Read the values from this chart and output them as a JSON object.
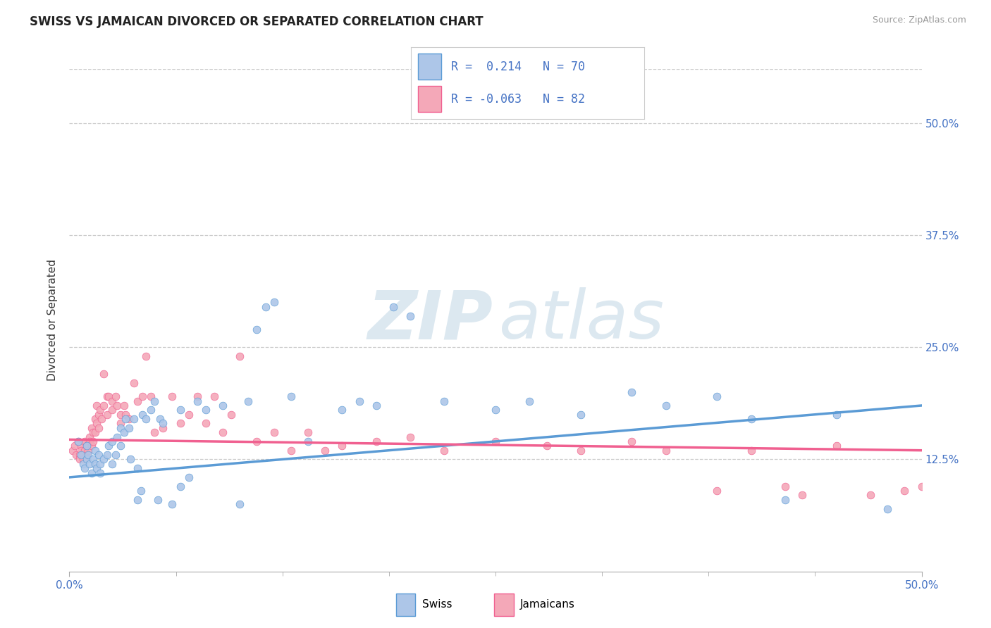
{
  "title": "SWISS VS JAMAICAN DIVORCED OR SEPARATED CORRELATION CHART",
  "source_text": "Source: ZipAtlas.com",
  "ylabel": "Divorced or Separated",
  "xlim": [
    0.0,
    0.5
  ],
  "ylim": [
    0.0,
    0.56
  ],
  "ytick_vals": [
    0.125,
    0.25,
    0.375,
    0.5
  ],
  "ytick_labels": [
    "12.5%",
    "25.0%",
    "37.5%",
    "50.0%"
  ],
  "gridline_color": "#cccccc",
  "swiss_color": "#adc6e8",
  "jamaican_color": "#f4a8b8",
  "swiss_edge_color": "#5b9bd5",
  "jamaican_edge_color": "#f06090",
  "swiss_line_color": "#5b9bd5",
  "jamaican_line_color": "#f06090",
  "watermark_color": "#dce8f0",
  "legend_R_swiss": "0.214",
  "legend_N_swiss": "70",
  "legend_R_jamaican": "-0.063",
  "legend_N_jamaican": "82",
  "swiss_points": [
    [
      0.005,
      0.145
    ],
    [
      0.007,
      0.13
    ],
    [
      0.008,
      0.12
    ],
    [
      0.009,
      0.115
    ],
    [
      0.01,
      0.14
    ],
    [
      0.01,
      0.125
    ],
    [
      0.011,
      0.13
    ],
    [
      0.012,
      0.12
    ],
    [
      0.013,
      0.11
    ],
    [
      0.014,
      0.125
    ],
    [
      0.015,
      0.135
    ],
    [
      0.015,
      0.12
    ],
    [
      0.016,
      0.115
    ],
    [
      0.017,
      0.13
    ],
    [
      0.018,
      0.12
    ],
    [
      0.018,
      0.11
    ],
    [
      0.02,
      0.125
    ],
    [
      0.022,
      0.13
    ],
    [
      0.023,
      0.14
    ],
    [
      0.025,
      0.145
    ],
    [
      0.025,
      0.12
    ],
    [
      0.027,
      0.13
    ],
    [
      0.028,
      0.15
    ],
    [
      0.03,
      0.16
    ],
    [
      0.03,
      0.14
    ],
    [
      0.032,
      0.155
    ],
    [
      0.033,
      0.17
    ],
    [
      0.035,
      0.16
    ],
    [
      0.036,
      0.125
    ],
    [
      0.038,
      0.17
    ],
    [
      0.04,
      0.115
    ],
    [
      0.04,
      0.08
    ],
    [
      0.042,
      0.09
    ],
    [
      0.043,
      0.175
    ],
    [
      0.045,
      0.17
    ],
    [
      0.048,
      0.18
    ],
    [
      0.05,
      0.19
    ],
    [
      0.052,
      0.08
    ],
    [
      0.053,
      0.17
    ],
    [
      0.055,
      0.165
    ],
    [
      0.06,
      0.075
    ],
    [
      0.065,
      0.18
    ],
    [
      0.065,
      0.095
    ],
    [
      0.07,
      0.105
    ],
    [
      0.075,
      0.19
    ],
    [
      0.08,
      0.18
    ],
    [
      0.09,
      0.185
    ],
    [
      0.1,
      0.075
    ],
    [
      0.105,
      0.19
    ],
    [
      0.11,
      0.27
    ],
    [
      0.115,
      0.295
    ],
    [
      0.12,
      0.3
    ],
    [
      0.13,
      0.195
    ],
    [
      0.14,
      0.145
    ],
    [
      0.16,
      0.18
    ],
    [
      0.17,
      0.19
    ],
    [
      0.18,
      0.185
    ],
    [
      0.19,
      0.295
    ],
    [
      0.2,
      0.285
    ],
    [
      0.22,
      0.19
    ],
    [
      0.25,
      0.18
    ],
    [
      0.27,
      0.19
    ],
    [
      0.3,
      0.175
    ],
    [
      0.33,
      0.2
    ],
    [
      0.35,
      0.185
    ],
    [
      0.38,
      0.195
    ],
    [
      0.4,
      0.17
    ],
    [
      0.42,
      0.08
    ],
    [
      0.45,
      0.175
    ],
    [
      0.48,
      0.07
    ]
  ],
  "jamaican_points": [
    [
      0.002,
      0.135
    ],
    [
      0.003,
      0.14
    ],
    [
      0.004,
      0.13
    ],
    [
      0.005,
      0.145
    ],
    [
      0.006,
      0.13
    ],
    [
      0.006,
      0.125
    ],
    [
      0.007,
      0.14
    ],
    [
      0.007,
      0.135
    ],
    [
      0.008,
      0.13
    ],
    [
      0.008,
      0.125
    ],
    [
      0.009,
      0.145
    ],
    [
      0.009,
      0.135
    ],
    [
      0.01,
      0.14
    ],
    [
      0.01,
      0.13
    ],
    [
      0.011,
      0.14
    ],
    [
      0.011,
      0.135
    ],
    [
      0.012,
      0.15
    ],
    [
      0.012,
      0.145
    ],
    [
      0.013,
      0.14
    ],
    [
      0.013,
      0.16
    ],
    [
      0.014,
      0.155
    ],
    [
      0.014,
      0.145
    ],
    [
      0.015,
      0.17
    ],
    [
      0.015,
      0.155
    ],
    [
      0.016,
      0.165
    ],
    [
      0.016,
      0.185
    ],
    [
      0.017,
      0.175
    ],
    [
      0.017,
      0.16
    ],
    [
      0.018,
      0.18
    ],
    [
      0.019,
      0.17
    ],
    [
      0.02,
      0.22
    ],
    [
      0.02,
      0.185
    ],
    [
      0.022,
      0.195
    ],
    [
      0.022,
      0.175
    ],
    [
      0.023,
      0.195
    ],
    [
      0.025,
      0.18
    ],
    [
      0.025,
      0.19
    ],
    [
      0.027,
      0.195
    ],
    [
      0.028,
      0.185
    ],
    [
      0.03,
      0.175
    ],
    [
      0.03,
      0.165
    ],
    [
      0.032,
      0.185
    ],
    [
      0.033,
      0.175
    ],
    [
      0.035,
      0.17
    ],
    [
      0.038,
      0.21
    ],
    [
      0.04,
      0.19
    ],
    [
      0.043,
      0.195
    ],
    [
      0.045,
      0.24
    ],
    [
      0.048,
      0.195
    ],
    [
      0.05,
      0.155
    ],
    [
      0.055,
      0.16
    ],
    [
      0.06,
      0.195
    ],
    [
      0.065,
      0.165
    ],
    [
      0.07,
      0.175
    ],
    [
      0.075,
      0.195
    ],
    [
      0.08,
      0.165
    ],
    [
      0.085,
      0.195
    ],
    [
      0.09,
      0.155
    ],
    [
      0.095,
      0.175
    ],
    [
      0.1,
      0.24
    ],
    [
      0.11,
      0.145
    ],
    [
      0.12,
      0.155
    ],
    [
      0.13,
      0.135
    ],
    [
      0.14,
      0.155
    ],
    [
      0.15,
      0.135
    ],
    [
      0.16,
      0.14
    ],
    [
      0.18,
      0.145
    ],
    [
      0.2,
      0.15
    ],
    [
      0.22,
      0.135
    ],
    [
      0.25,
      0.145
    ],
    [
      0.28,
      0.14
    ],
    [
      0.3,
      0.135
    ],
    [
      0.33,
      0.145
    ],
    [
      0.35,
      0.135
    ],
    [
      0.38,
      0.09
    ],
    [
      0.4,
      0.135
    ],
    [
      0.42,
      0.095
    ],
    [
      0.43,
      0.085
    ],
    [
      0.45,
      0.14
    ],
    [
      0.47,
      0.085
    ],
    [
      0.49,
      0.09
    ],
    [
      0.5,
      0.095
    ]
  ],
  "swiss_line": [
    [
      0.0,
      0.105
    ],
    [
      0.5,
      0.185
    ]
  ],
  "jamaican_line": [
    [
      0.0,
      0.147
    ],
    [
      0.5,
      0.135
    ]
  ]
}
